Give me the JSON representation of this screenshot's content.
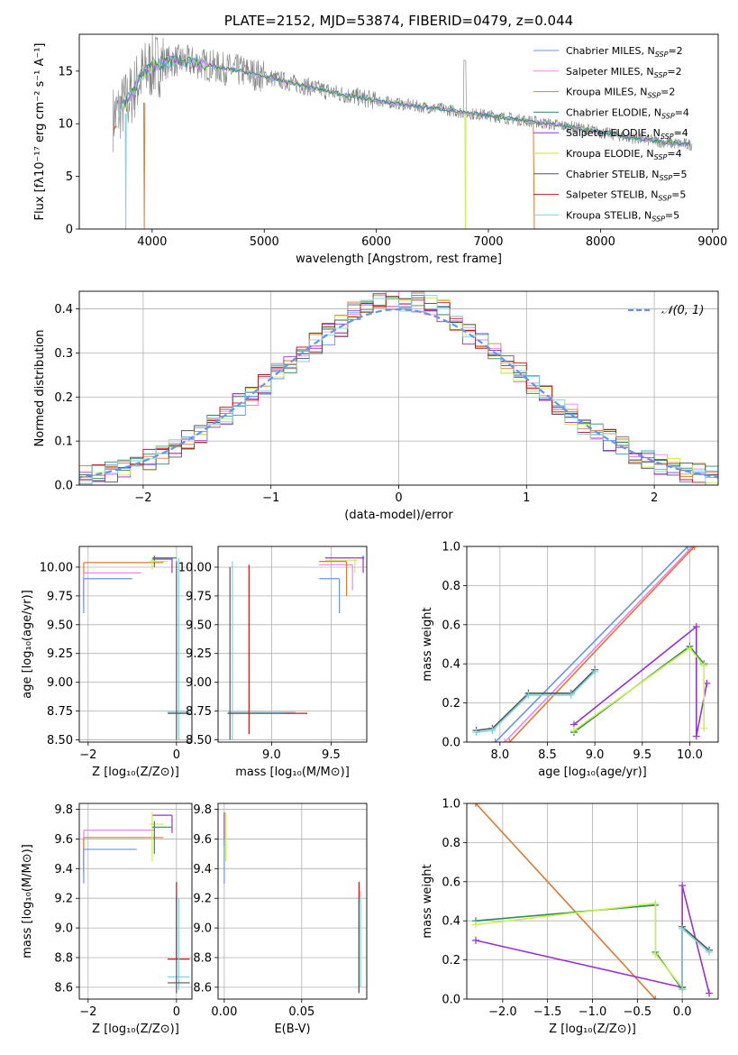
{
  "colors": {
    "chabrier_miles": "#6495ed",
    "salpeter_miles": "#ee82ee",
    "kroupa_miles": "#cd853f",
    "chabrier_elodie": "#2e8b57",
    "salpeter_elodie": "#9932cc",
    "kroupa_elodie": "#d4e600",
    "chabrier_stelib": "#555555",
    "salpeter_stelib": "#c81414",
    "kroupa_stelib": "#7fd3e0",
    "spectrum_grey": "#808080",
    "flux_line": "#e07830",
    "fit_light": "#c8f050",
    "gaussian": "#6495ed"
  },
  "chart_data": [
    {
      "id": "spectrum",
      "type": "line",
      "title": "PLATE=2152, MJD=53874, FIBERID=0479, z=0.044",
      "xlabel": "wavelength [Angstrom, rest frame]",
      "ylabel": "Flux [fλ10⁻¹⁷ erg cm⁻² s⁻¹ A⁻¹]",
      "xlim": [
        3350,
        9050
      ],
      "ylim": [
        0,
        18.5
      ],
      "xticks": [
        4000,
        5000,
        6000,
        7000,
        8000,
        9000
      ],
      "yticks": [
        0,
        5,
        10,
        15
      ],
      "legend_position": "top-right",
      "legend": [
        "Chabrier MILES, N_SSP=2",
        "Salpeter MILES, N_SSP=2",
        "Kroupa MILES, N_SSP=2",
        "Chabrier ELODIE, N_SSP=4",
        "Salpeter ELODIE, N_SSP=4",
        "Kroupa ELODIE, N_SSP=4",
        "Chabrier STELIB, N_SSP=5",
        "Salpeter STELIB, N_SSP=5",
        "Kroupa STELIB, N_SSP=5"
      ],
      "continuum": {
        "x": [
          3650,
          3800,
          3900,
          4000,
          4200,
          4400,
          4600,
          4800,
          5000,
          5200,
          5400,
          5600,
          5800,
          6000,
          6200,
          6400,
          6600,
          6800,
          7000,
          7200,
          7400,
          7600,
          7800,
          8000,
          8200,
          8400,
          8600,
          8800
        ],
        "y": [
          10.5,
          12.5,
          14.5,
          15.5,
          16.0,
          15.8,
          15.3,
          15.0,
          14.5,
          14.0,
          13.5,
          13.0,
          12.6,
          12.2,
          11.9,
          11.6,
          11.4,
          11.0,
          10.8,
          10.5,
          10.2,
          9.9,
          9.6,
          9.2,
          8.8,
          8.5,
          8.2,
          8.0
        ]
      }
    },
    {
      "id": "residuals",
      "type": "line",
      "xlabel": "(data-model)/error",
      "ylabel": "Normed distribution",
      "xlim": [
        -2.5,
        2.5
      ],
      "ylim": [
        0,
        0.44
      ],
      "xticks": [
        -2,
        -1,
        0,
        1,
        2
      ],
      "yticks": [
        0.0,
        0.1,
        0.2,
        0.3,
        0.4
      ],
      "legend_position": "top-right",
      "legend": [
        "𝒩(0, 1)"
      ],
      "grid": true
    },
    {
      "id": "age_vs_Z",
      "type": "scatter",
      "xlabel": "Z [log₁₀(Z/Z⊙)]",
      "ylabel": "age  [log₁₀(age/yr)]",
      "xlim": [
        -2.2,
        0.35
      ],
      "ylim": [
        8.48,
        10.18
      ],
      "xticks": [
        -2,
        0
      ],
      "yticks": [
        8.5,
        8.75,
        9.0,
        9.25,
        9.5,
        9.75,
        10.0
      ],
      "grid": true
    },
    {
      "id": "age_vs_mass",
      "type": "scatter",
      "xlabel": "mass [log₁₀(M/M⊙)]",
      "xlim": [
        8.55,
        9.8
      ],
      "ylim": [
        8.48,
        10.18
      ],
      "xticks": [
        9.0,
        9.5
      ],
      "yticks": [
        8.5,
        8.75,
        9.0,
        9.25,
        9.5,
        9.75,
        10.0
      ],
      "grid": true
    },
    {
      "id": "weight_vs_age",
      "type": "line",
      "xlabel": "age  [log₁₀(age/yr)]",
      "ylabel": "mass weight",
      "xlim": [
        7.65,
        10.3
      ],
      "ylim": [
        0,
        1.0
      ],
      "xticks": [
        8.0,
        8.5,
        9.0,
        9.5,
        10.0
      ],
      "yticks": [
        0.0,
        0.2,
        0.4,
        0.6,
        0.8,
        1.0
      ],
      "grid": true,
      "series": [
        {
          "color_key": "chabrier_miles",
          "x": [
            7.95,
            9.98
          ],
          "y": [
            0.0,
            1.0
          ]
        },
        {
          "color_key": "salpeter_miles",
          "x": [
            8.05,
            10.03
          ],
          "y": [
            0.0,
            1.0
          ]
        },
        {
          "color_key": "flux_line",
          "x": [
            8.1,
            10.05
          ],
          "y": [
            0.0,
            1.0
          ]
        },
        {
          "color_key": "salpeter_elodie",
          "x": [
            8.78,
            10.07,
            10.07,
            10.18
          ],
          "y": [
            0.09,
            0.59,
            0.03,
            0.3
          ]
        },
        {
          "color_key": "chabrier_elodie",
          "x": [
            8.78,
            10.0,
            10.15
          ],
          "y": [
            0.05,
            0.49,
            0.4
          ]
        },
        {
          "color_key": "fit_light",
          "x": [
            8.78,
            10.0,
            10.15,
            10.15
          ],
          "y": [
            0.06,
            0.48,
            0.39,
            0.07
          ]
        },
        {
          "color_key": "chabrier_stelib",
          "x": [
            7.75,
            7.92,
            8.3,
            8.75,
            9.0
          ],
          "y": [
            0.06,
            0.07,
            0.25,
            0.25,
            0.37
          ]
        },
        {
          "color_key": "kroupa_stelib",
          "x": [
            7.75,
            7.92,
            8.3,
            8.75,
            9.0
          ],
          "y": [
            0.05,
            0.06,
            0.24,
            0.24,
            0.36
          ]
        }
      ]
    },
    {
      "id": "mass_vs_Z",
      "type": "scatter",
      "xlabel": "Z [log₁₀(Z/Z⊙)]",
      "ylabel": "mass [log₁₀(M/M⊙)]",
      "xlim": [
        -2.2,
        0.35
      ],
      "ylim": [
        8.52,
        9.84
      ],
      "xticks": [
        -2,
        0
      ],
      "yticks": [
        8.6,
        8.8,
        9.0,
        9.2,
        9.4,
        9.6,
        9.8
      ],
      "grid": true
    },
    {
      "id": "mass_vs_ebv",
      "type": "scatter",
      "xlabel": "E(B-V)",
      "xlim": [
        -0.004,
        0.092
      ],
      "ylim": [
        8.52,
        9.84
      ],
      "xticks": [
        0.0,
        0.05
      ],
      "xtick_labels": [
        "0.00",
        "0.05"
      ],
      "yticks": [
        8.6,
        8.8,
        9.0,
        9.2,
        9.4,
        9.6,
        9.8
      ],
      "grid": true
    },
    {
      "id": "weight_vs_Z",
      "type": "line",
      "xlabel": "Z [log₁₀(Z/Z⊙)]",
      "ylabel": "mass weight",
      "xlim": [
        -2.4,
        0.4
      ],
      "ylim": [
        0,
        1.0
      ],
      "xticks": [
        -2.0,
        -1.5,
        -1.0,
        -0.5,
        0.0
      ],
      "yticks": [
        0.0,
        0.2,
        0.4,
        0.6,
        0.8,
        1.0
      ],
      "grid": true,
      "series": [
        {
          "color_key": "flux_line",
          "x": [
            -2.3,
            -0.3
          ],
          "y": [
            1.0,
            0.0
          ]
        },
        {
          "color_key": "salpeter_elodie",
          "x": [
            -2.3,
            0.0,
            0.0,
            0.3
          ],
          "y": [
            0.3,
            0.06,
            0.58,
            0.03
          ]
        },
        {
          "color_key": "chabrier_elodie",
          "x": [
            -2.3,
            -0.3,
            -0.3,
            0.0
          ],
          "y": [
            0.4,
            0.48,
            0.24,
            0.05
          ]
        },
        {
          "color_key": "fit_light",
          "x": [
            -2.3,
            -0.3,
            -0.3,
            0.0
          ],
          "y": [
            0.38,
            0.49,
            0.23,
            0.06
          ]
        },
        {
          "color_key": "chabrier_stelib",
          "x": [
            0.0,
            0.0,
            0.3
          ],
          "y": [
            0.06,
            0.37,
            0.25
          ]
        },
        {
          "color_key": "kroupa_stelib",
          "x": [
            0.0,
            0.0,
            0.3
          ],
          "y": [
            0.05,
            0.36,
            0.24
          ]
        }
      ]
    }
  ]
}
